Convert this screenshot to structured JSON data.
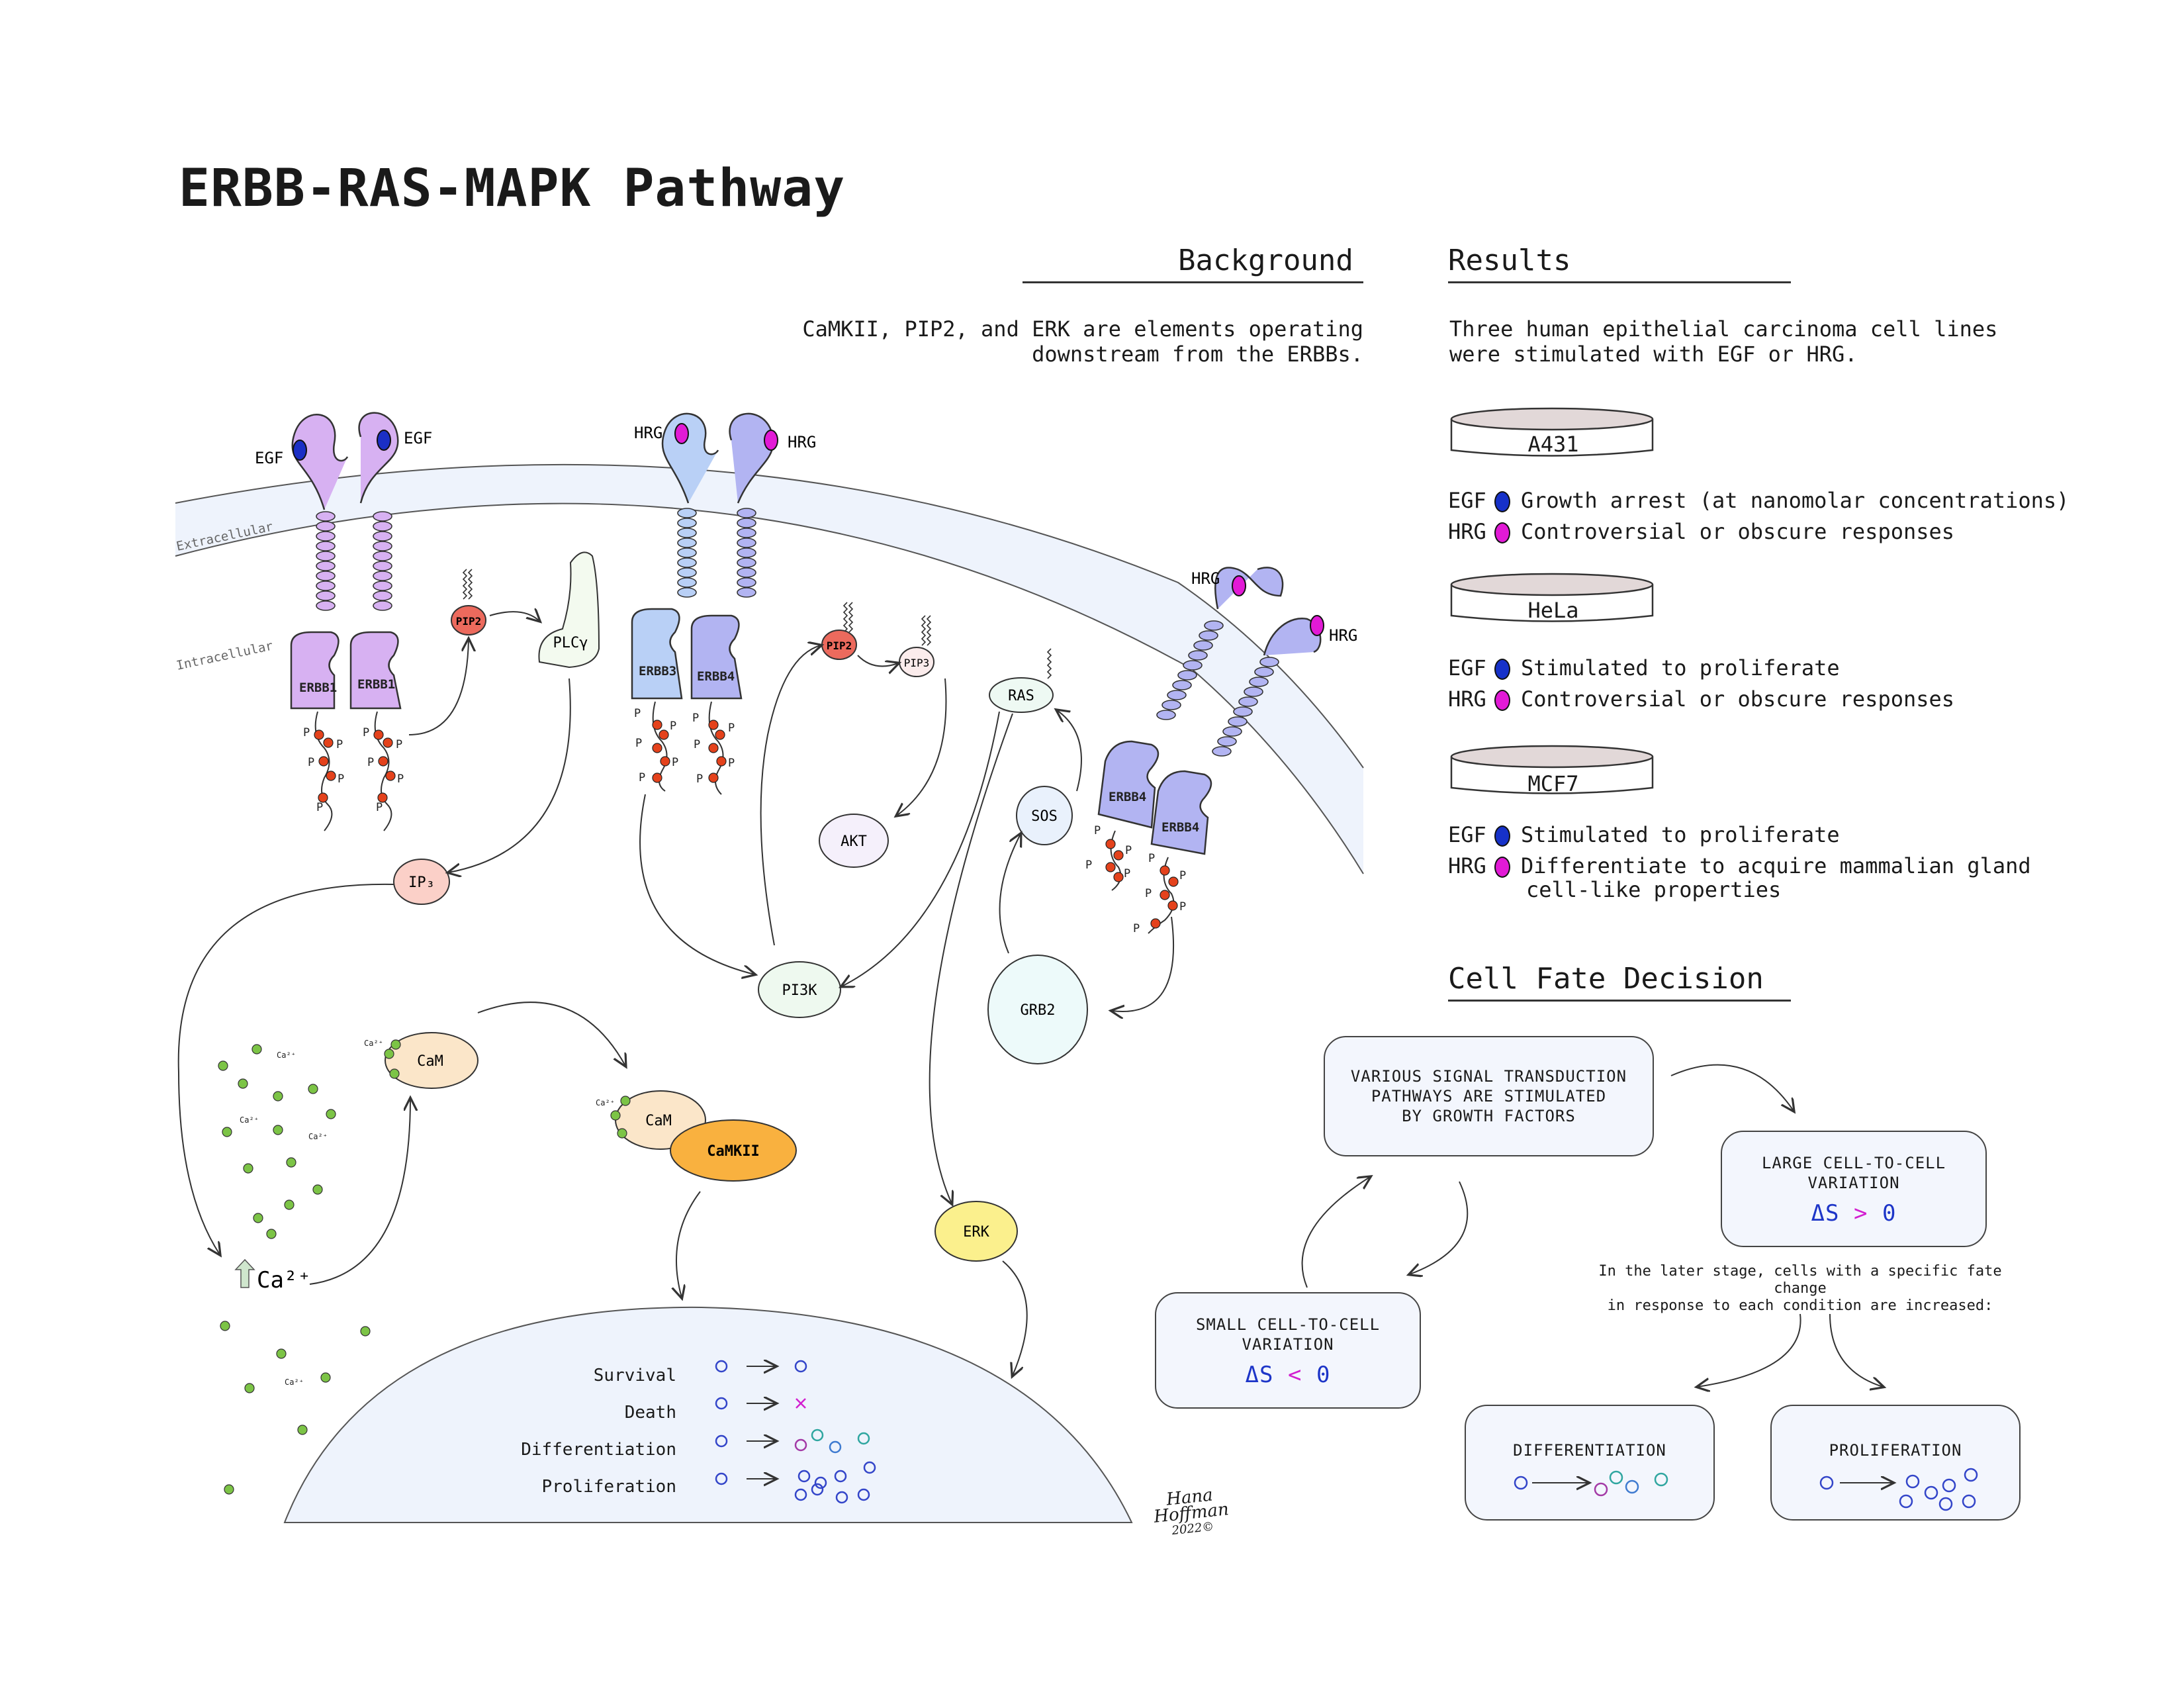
{
  "title": "ERBB-RAS-MAPK Pathway",
  "background": {
    "heading": "Background",
    "text_line1": "CaMKII, PIP2, and ERK are elements operating",
    "text_line2": "downstream from the ERBBs."
  },
  "results": {
    "heading": "Results",
    "text_line1": "Three human epithelial carcinoma cell lines",
    "text_line2": "were stimulated with EGF or HRG.",
    "cell_lines": [
      {
        "name": "A431",
        "egf": "Growth arrest (at nanomolar concentrations)",
        "hrg": "Controversial or obscure responses"
      },
      {
        "name": "HeLa",
        "egf": "Stimulated to proliferate",
        "hrg": "Controversial or obscure responses"
      },
      {
        "name": "MCF7",
        "egf": "Stimulated to proliferate",
        "hrg": "Differentiate to acquire mammalian gland",
        "hrg_line2": "cell-like properties"
      }
    ],
    "egf_label": "EGF",
    "hrg_label": "HRG",
    "egf_color": "#1631c9",
    "hrg_color": "#e21ad6"
  },
  "cell_fate": {
    "heading": "Cell Fate Decision",
    "signal_box": [
      "VARIOUS SIGNAL TRANSDUCTION",
      "PATHWAYS ARE STIMULATED",
      "BY GROWTH FACTORS"
    ],
    "large_box": [
      "LARGE CELL-TO-CELL",
      "VARIATION"
    ],
    "large_ds": {
      "symbol": "ΔS",
      "op": ">",
      "value": "0"
    },
    "small_box": [
      "SMALL CELL-TO-CELL",
      "VARIATION"
    ],
    "small_ds": {
      "symbol": "ΔS",
      "op": "<",
      "value": "0"
    },
    "note_line1": "In the later stage, cells with a specific fate change",
    "note_line2": "in response to each condition are increased:",
    "differentiation": "DIFFERENTIATION",
    "proliferation": "PROLIFERATION"
  },
  "diagram": {
    "extracellular": "Extracellular",
    "intracellular": "Intracellular",
    "egf": "EGF",
    "hrg": "HRG",
    "erbb1": "ERBB1",
    "erbb3": "ERBB3",
    "erbb4": "ERBB4",
    "pip2": "PIP2",
    "pip3": "PIP3",
    "plcy": "PLCγ",
    "ip3": "IP₃",
    "ras": "RAS",
    "sos": "SOS",
    "akt": "AKT",
    "pi3k": "PI3K",
    "grb2": "GRB2",
    "cam": "CaM",
    "camkii": "CaMKII",
    "erk": "ERK",
    "ca2": "Ca²⁺",
    "ca_small": "Ca²⁺",
    "p": "P",
    "fates": [
      "Survival",
      "Death",
      "Differentiation",
      "Proliferation"
    ]
  },
  "signature": {
    "name": "Hana Hoffman",
    "year": "2022©"
  }
}
